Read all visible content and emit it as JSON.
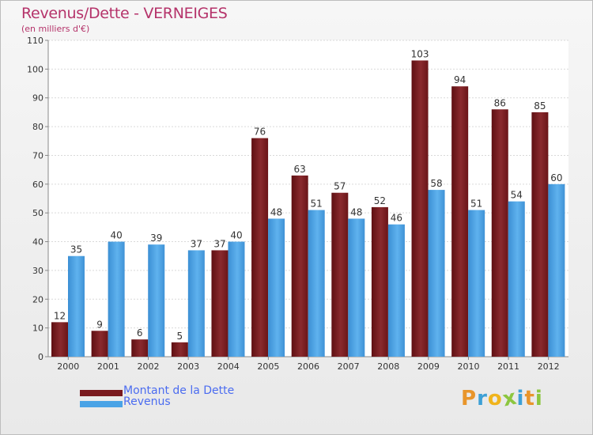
{
  "chart_data": {
    "type": "bar",
    "title": "Revenus/Dette - VERNEIGES",
    "subtitle": "(en milliers d'€)",
    "categories": [
      "2000",
      "2001",
      "2002",
      "2003",
      "2004",
      "2005",
      "2006",
      "2007",
      "2008",
      "2009",
      "2010",
      "2011",
      "2012"
    ],
    "series": [
      {
        "name": "Montant de la Dette",
        "color": "#7a1a1e",
        "values": [
          12,
          9,
          6,
          5,
          37,
          76,
          63,
          57,
          52,
          103,
          94,
          86,
          85
        ]
      },
      {
        "name": "Revenus",
        "color": "#4aa3e6",
        "values": [
          35,
          40,
          39,
          37,
          40,
          48,
          51,
          48,
          46,
          58,
          51,
          54,
          60
        ]
      }
    ],
    "ylim": [
      0,
      110
    ],
    "yticks": [
      0,
      10,
      20,
      30,
      40,
      50,
      60,
      70,
      80,
      90,
      100,
      110
    ],
    "grid": true,
    "legend_position": "bottom-left"
  },
  "logo": {
    "letters": [
      "P",
      "r",
      "o",
      "x",
      "i",
      "t",
      "i"
    ],
    "colors": [
      "#e8952b",
      "#3da0d6",
      "#f0b41c",
      "#8cc63f",
      "#3da0d6",
      "#e8952b",
      "#8cc63f"
    ]
  }
}
